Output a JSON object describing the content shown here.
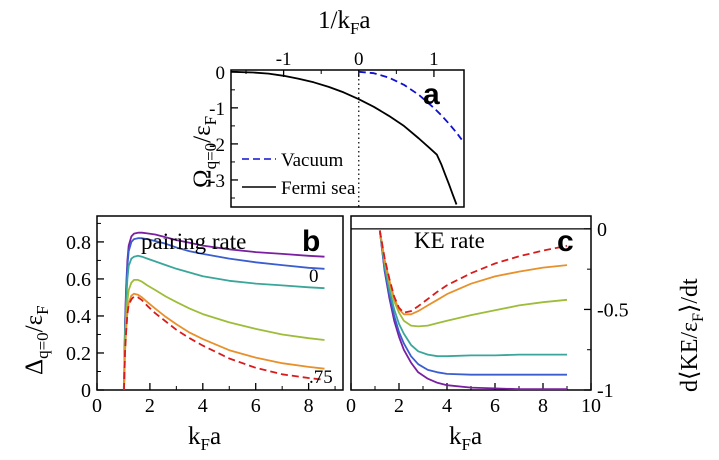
{
  "chart_data": [
    {
      "panel": "a",
      "type": "line",
      "xlabel": "1/k_F a",
      "ylabel": "Ω_q=0/ε_F",
      "xlim": [
        -1.7,
        1.4
      ],
      "ylim": [
        -3.75,
        0.05
      ],
      "x_ticks": [
        "-1",
        "0",
        "1"
      ],
      "y_ticks": [
        "0",
        "-1",
        "-2",
        "-3"
      ],
      "grid": false,
      "legend_position": "bottom-left",
      "vline_x": 0,
      "series": [
        {
          "name": "Vacuum",
          "color": "#1010d0",
          "dash": true,
          "x": [
            0,
            0.2,
            0.4,
            0.6,
            0.8,
            1.0,
            1.1,
            1.2,
            1.3,
            1.37
          ],
          "y": [
            0,
            -0.04,
            -0.16,
            -0.36,
            -0.64,
            -1.0,
            -1.21,
            -1.44,
            -1.69,
            -1.88
          ]
        },
        {
          "name": "Fermi sea",
          "color": "#000000",
          "dash": false,
          "x": [
            -1.7,
            -1.4,
            -1.2,
            -1.0,
            -0.8,
            -0.6,
            -0.4,
            -0.2,
            0,
            0.2,
            0.4,
            0.6,
            0.8,
            0.95,
            1.04,
            1.1,
            1.15,
            1.2,
            1.25,
            1.3
          ],
          "y": [
            0,
            -0.02,
            -0.05,
            -0.11,
            -0.19,
            -0.29,
            -0.42,
            -0.57,
            -0.76,
            -0.97,
            -1.22,
            -1.5,
            -1.85,
            -2.13,
            -2.3,
            -2.58,
            -2.85,
            -3.12,
            -3.4,
            -3.68
          ]
        }
      ]
    },
    {
      "panel": "b",
      "type": "line",
      "title": "pairing rate",
      "xlabel": "k_F a",
      "ylabel": "Δ_q=0/ε_F",
      "xlim": [
        0,
        9.3
      ],
      "ylim": [
        0,
        0.94
      ],
      "x_ticks": [
        "0",
        "2",
        "4",
        "6",
        "8"
      ],
      "y_ticks": [
        "0",
        "0.2",
        "0.4",
        "0.6",
        "0.8"
      ],
      "grid": false,
      "annotations": [
        "0",
        ".75"
      ],
      "x": [
        1.02,
        1.06,
        1.1,
        1.15,
        1.2,
        1.3,
        1.4,
        1.55,
        1.7,
        1.9,
        2.2,
        2.6,
        3,
        3.5,
        4,
        5,
        6,
        7,
        8,
        8.6
      ],
      "series": [
        {
          "color": "#7a1fa0",
          "dash": false,
          "values": [
            0.0,
            0.36,
            0.55,
            0.7,
            0.78,
            0.83,
            0.845,
            0.85,
            0.85,
            0.846,
            0.84,
            0.825,
            0.81,
            0.795,
            0.78,
            0.76,
            0.745,
            0.735,
            0.725,
            0.72
          ]
        },
        {
          "color": "#3a5dd0",
          "dash": false,
          "values": [
            0.0,
            0.34,
            0.52,
            0.67,
            0.75,
            0.8,
            0.815,
            0.82,
            0.82,
            0.815,
            0.805,
            0.79,
            0.77,
            0.75,
            0.735,
            0.71,
            0.69,
            0.675,
            0.66,
            0.655
          ]
        },
        {
          "color": "#3aa69a",
          "dash": false,
          "values": [
            0.0,
            0.3,
            0.47,
            0.6,
            0.67,
            0.71,
            0.72,
            0.725,
            0.72,
            0.71,
            0.695,
            0.675,
            0.655,
            0.635,
            0.615,
            0.59,
            0.575,
            0.565,
            0.555,
            0.55
          ]
        },
        {
          "color": "#9dbd3a",
          "dash": false,
          "values": [
            0.0,
            0.24,
            0.38,
            0.48,
            0.54,
            0.58,
            0.595,
            0.595,
            0.585,
            0.565,
            0.54,
            0.505,
            0.475,
            0.44,
            0.41,
            0.365,
            0.33,
            0.3,
            0.28,
            0.27
          ]
        },
        {
          "color": "#e8902a",
          "dash": false,
          "values": [
            0.0,
            0.2,
            0.32,
            0.42,
            0.47,
            0.51,
            0.52,
            0.515,
            0.5,
            0.475,
            0.44,
            0.395,
            0.355,
            0.31,
            0.275,
            0.215,
            0.175,
            0.145,
            0.125,
            0.115
          ]
        },
        {
          "color": "#d81c1c",
          "dash": true,
          "values": [
            0.0,
            0.2,
            0.31,
            0.41,
            0.46,
            0.49,
            0.505,
            0.5,
            0.485,
            0.455,
            0.415,
            0.37,
            0.325,
            0.28,
            0.24,
            0.17,
            0.12,
            0.085,
            0.065,
            0.055
          ]
        }
      ]
    },
    {
      "panel": "c",
      "type": "line",
      "title": "KE rate",
      "xlabel": "k_F a",
      "ylabel": "d⟨KE/ε_F⟩/dt",
      "xlim": [
        0,
        10
      ],
      "ylim": [
        -1.0,
        0.08
      ],
      "x_ticks": [
        "0",
        "2",
        "4",
        "6",
        "8",
        "10"
      ],
      "y_ticks": [
        "0",
        "-0.5",
        "-1"
      ],
      "grid": false,
      "hline_y": 0,
      "x": [
        1.2,
        1.4,
        1.6,
        1.8,
        2.0,
        2.2,
        2.5,
        2.8,
        3.2,
        3.6,
        4,
        5,
        6,
        7,
        8,
        9
      ],
      "series": [
        {
          "color": "#7a1fa0",
          "dash": false,
          "values": [
            -0.01,
            -0.26,
            -0.43,
            -0.57,
            -0.67,
            -0.75,
            -0.83,
            -0.89,
            -0.93,
            -0.955,
            -0.97,
            -0.985,
            -0.99,
            -0.995,
            -0.995,
            -0.995
          ]
        },
        {
          "color": "#3a5dd0",
          "dash": false,
          "values": [
            -0.01,
            -0.25,
            -0.41,
            -0.54,
            -0.64,
            -0.71,
            -0.79,
            -0.84,
            -0.875,
            -0.89,
            -0.9,
            -0.905,
            -0.905,
            -0.905,
            -0.905,
            -0.905
          ]
        },
        {
          "color": "#3aa69a",
          "dash": false,
          "values": [
            -0.01,
            -0.23,
            -0.38,
            -0.5,
            -0.59,
            -0.65,
            -0.72,
            -0.76,
            -0.78,
            -0.79,
            -0.79,
            -0.785,
            -0.785,
            -0.78,
            -0.78,
            -0.78
          ]
        },
        {
          "color": "#9dbd3a",
          "dash": false,
          "values": [
            -0.01,
            -0.2,
            -0.34,
            -0.45,
            -0.52,
            -0.57,
            -0.6,
            -0.605,
            -0.6,
            -0.585,
            -0.57,
            -0.535,
            -0.505,
            -0.475,
            -0.455,
            -0.44
          ]
        },
        {
          "color": "#e8902a",
          "dash": false,
          "values": [
            -0.01,
            -0.19,
            -0.32,
            -0.43,
            -0.5,
            -0.53,
            -0.53,
            -0.51,
            -0.475,
            -0.44,
            -0.405,
            -0.34,
            -0.295,
            -0.265,
            -0.24,
            -0.225
          ]
        },
        {
          "color": "#d81c1c",
          "dash": true,
          "values": [
            -0.01,
            -0.18,
            -0.31,
            -0.42,
            -0.49,
            -0.52,
            -0.51,
            -0.48,
            -0.435,
            -0.39,
            -0.35,
            -0.275,
            -0.215,
            -0.17,
            -0.135,
            -0.105
          ]
        }
      ]
    }
  ],
  "labels": {
    "a_top_axis": "1/k",
    "a_top_axis_sub": "F",
    "a_top_axis_tail": "a",
    "a_ylabel_main": "Ω",
    "a_ylabel_sub": "q=0",
    "a_ylabel_mid": "/ε",
    "a_ylabel_sub2": "F",
    "b_ylabel_main": "Δ",
    "b_ylabel_sub": "q=0",
    "b_ylabel_mid": "/ε",
    "b_ylabel_sub2": "F",
    "b_xlabel_main": "k",
    "b_xlabel_sub": "F",
    "b_xlabel_tail": "a",
    "c_xlabel_main": "k",
    "c_xlabel_sub": "F",
    "c_xlabel_tail": "a",
    "c_ylabel_pre": "d⟨KE/ε",
    "c_ylabel_sub": "F",
    "c_ylabel_tail": "⟩/dt",
    "panel_a": "a",
    "panel_b": "b",
    "panel_c": "c",
    "b_title": "pairing rate",
    "c_title": "KE rate",
    "b_annot_top": "0",
    "b_annot_bottom": ".75",
    "legend_vacuum": "Vacuum",
    "legend_fermi": "Fermi sea"
  }
}
